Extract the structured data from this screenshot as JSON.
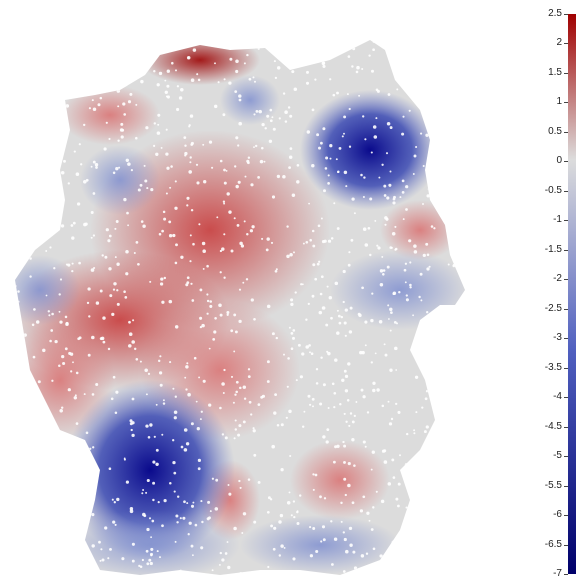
{
  "map": {
    "region": "Germany",
    "colormap": {
      "low_color": "#0a0a8c",
      "mid_color": "#dcdcdc",
      "high_color": "#b40000"
    }
  },
  "legend": {
    "min": -7,
    "max": 2.5,
    "ticks": [
      "2.5",
      "2",
      "1.5",
      "1",
      "0.5",
      "0",
      "-0.5",
      "-1",
      "-1.5",
      "-2",
      "-2.5",
      "-3",
      "-3.5",
      "-4",
      "-4.5",
      "-5",
      "-5.5",
      "-6",
      "-6.5",
      "-7"
    ]
  }
}
